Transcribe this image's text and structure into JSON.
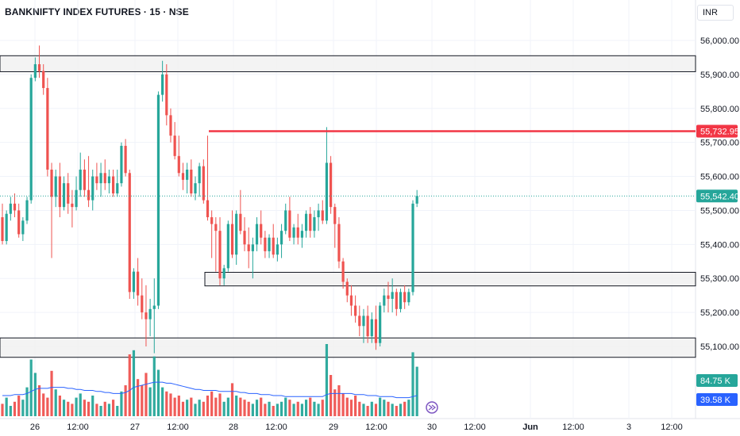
{
  "header": {
    "title": "BANKNIFTY INDEX FUTURES · 15 · NSE",
    "currency": "INR"
  },
  "colors": {
    "up": "#26a69a",
    "down": "#ef5350",
    "zone_fill": "#f0f0f0",
    "zone_border": "#131722",
    "resistance_line": "#f23645",
    "volume_ma": "#2962ff",
    "volume_tag": "#26a69a",
    "volume_ma_tag": "#2962ff",
    "grid": "#f0f3fa"
  },
  "chart_data": {
    "type": "candlestick",
    "y_axis": {
      "ticks": [
        "56,000.00",
        "55,900.00",
        "55,800.00",
        "55,700.00",
        "55,600.00",
        "55,500.00",
        "55,400.00",
        "55,300.00",
        "55,200.00",
        "55,100.00"
      ],
      "tick_values": [
        56000,
        55900,
        55800,
        55700,
        55600,
        55500,
        55400,
        55300,
        55200,
        55100
      ],
      "range": [
        55000,
        56060
      ]
    },
    "x_axis": {
      "ticks": [
        "26",
        "12:00",
        "27",
        "12:00",
        "28",
        "12:00",
        "29",
        "12:00",
        "30",
        "12:00",
        "Jun",
        "12:00",
        "3",
        "12:00"
      ],
      "bold": [
        false,
        false,
        false,
        false,
        false,
        false,
        false,
        false,
        false,
        false,
        true,
        false,
        false,
        false
      ]
    },
    "price_tags": [
      {
        "label": "55,732.95",
        "value": 55732.95,
        "color": "#f23645"
      },
      {
        "label": "55,542.40",
        "value": 55542.4,
        "color": "#26a69a"
      }
    ],
    "volume_tags": [
      {
        "label": "84.75 K",
        "color": "#26a69a"
      },
      {
        "label": "39.58 K",
        "color": "#2962ff"
      }
    ],
    "zones": [
      {
        "top": 55955,
        "bottom": 55908
      },
      {
        "top": 55318,
        "bottom": 55278
      },
      {
        "top": 55125,
        "bottom": 55068
      }
    ],
    "resistance": {
      "value": 55732.95
    },
    "last_price": 55542.4,
    "candles": [
      [
        55480,
        55520,
        55400,
        55410
      ],
      [
        55410,
        55500,
        55400,
        55490
      ],
      [
        55490,
        55540,
        55470,
        55520
      ],
      [
        55520,
        55550,
        55480,
        55500
      ],
      [
        55500,
        55520,
        55420,
        55430
      ],
      [
        55430,
        55480,
        55410,
        55470
      ],
      [
        55470,
        55540,
        55460,
        55530
      ],
      [
        55530,
        55900,
        55520,
        55890
      ],
      [
        55890,
        55950,
        55880,
        55930
      ],
      [
        55930,
        55985,
        55890,
        55910
      ],
      [
        55910,
        55930,
        55840,
        55860
      ],
      [
        55860,
        55890,
        55600,
        55620
      ],
      [
        55620,
        55640,
        55360,
        55540
      ],
      [
        55540,
        55620,
        55510,
        55600
      ],
      [
        55600,
        55640,
        55480,
        55510
      ],
      [
        55510,
        55600,
        55500,
        55580
      ],
      [
        55580,
        55610,
        55490,
        55520
      ],
      [
        55520,
        55560,
        55450,
        55510
      ],
      [
        55510,
        55600,
        55500,
        55560
      ],
      [
        55560,
        55670,
        55540,
        55620
      ],
      [
        55620,
        55650,
        55540,
        55560
      ],
      [
        55560,
        55660,
        55510,
        55530
      ],
      [
        55530,
        55620,
        55500,
        55600
      ],
      [
        55600,
        55640,
        55560,
        55580
      ],
      [
        55580,
        55640,
        55540,
        55610
      ],
      [
        55610,
        55650,
        55560,
        55580
      ],
      [
        55580,
        55620,
        55550,
        55600
      ],
      [
        55600,
        55620,
        55540,
        55550
      ],
      [
        55550,
        55620,
        55540,
        55580
      ],
      [
        55580,
        55700,
        55570,
        55690
      ],
      [
        55690,
        55710,
        55600,
        55610
      ],
      [
        55610,
        55620,
        55240,
        55260
      ],
      [
        55260,
        55330,
        55240,
        55320
      ],
      [
        55320,
        55360,
        55220,
        55250
      ],
      [
        55250,
        55300,
        55180,
        55200
      ],
      [
        55200,
        55280,
        55100,
        55180
      ],
      [
        55180,
        55240,
        55130,
        55210
      ],
      [
        55210,
        55300,
        55080,
        55220
      ],
      [
        55220,
        55850,
        55210,
        55840
      ],
      [
        55840,
        55940,
        55820,
        55900
      ],
      [
        55900,
        55930,
        55750,
        55780
      ],
      [
        55780,
        55800,
        55700,
        55720
      ],
      [
        55720,
        55760,
        55650,
        55660
      ],
      [
        55660,
        55720,
        55600,
        55610
      ],
      [
        55610,
        55640,
        55560,
        55590
      ],
      [
        55590,
        55640,
        55550,
        55620
      ],
      [
        55620,
        55650,
        55540,
        55550
      ],
      [
        55550,
        55600,
        55530,
        55580
      ],
      [
        55580,
        55640,
        55540,
        55630
      ],
      [
        55630,
        55650,
        55520,
        55530
      ],
      [
        55530,
        55720,
        55470,
        55480
      ],
      [
        55480,
        55500,
        55360,
        55460
      ],
      [
        55460,
        55480,
        55320,
        55440
      ],
      [
        55440,
        55480,
        55280,
        55300
      ],
      [
        55300,
        55340,
        55280,
        55330
      ],
      [
        55330,
        55470,
        55320,
        55460
      ],
      [
        55460,
        55500,
        55360,
        55370
      ],
      [
        55370,
        55500,
        55340,
        55490
      ],
      [
        55490,
        55560,
        55430,
        55440
      ],
      [
        55440,
        55480,
        55380,
        55400
      ],
      [
        55400,
        55450,
        55330,
        55380
      ],
      [
        55380,
        55420,
        55300,
        55400
      ],
      [
        55400,
        55480,
        55380,
        55460
      ],
      [
        55460,
        55500,
        55400,
        55420
      ],
      [
        55420,
        55440,
        55360,
        55380
      ],
      [
        55380,
        55430,
        55360,
        55420
      ],
      [
        55420,
        55460,
        55360,
        55370
      ],
      [
        55370,
        55420,
        55350,
        55400
      ],
      [
        55400,
        55460,
        55360,
        55440
      ],
      [
        55440,
        55520,
        55430,
        55500
      ],
      [
        55500,
        55540,
        55410,
        55420
      ],
      [
        55420,
        55460,
        55400,
        55450
      ],
      [
        55450,
        55490,
        55400,
        55420
      ],
      [
        55420,
        55460,
        55390,
        55440
      ],
      [
        55440,
        55500,
        55420,
        55490
      ],
      [
        55490,
        55510,
        55420,
        55440
      ],
      [
        55440,
        55500,
        55420,
        55480
      ],
      [
        55480,
        55520,
        55440,
        55500
      ],
      [
        55500,
        55530,
        55460,
        55470
      ],
      [
        55470,
        55745,
        55460,
        55640
      ],
      [
        55640,
        55660,
        55490,
        55510
      ],
      [
        55510,
        55520,
        55390,
        55460
      ],
      [
        55460,
        55480,
        55330,
        55350
      ],
      [
        55350,
        55360,
        55270,
        55290
      ],
      [
        55290,
        55300,
        55230,
        55250
      ],
      [
        55250,
        55280,
        55190,
        55220
      ],
      [
        55220,
        55250,
        55170,
        55190
      ],
      [
        55190,
        55220,
        55130,
        55160
      ],
      [
        55160,
        55210,
        55110,
        55190
      ],
      [
        55190,
        55220,
        55110,
        55130
      ],
      [
        55130,
        55200,
        55110,
        55180
      ],
      [
        55180,
        55220,
        55090,
        55110
      ],
      [
        55110,
        55230,
        55100,
        55220
      ],
      [
        55220,
        55270,
        55200,
        55250
      ],
      [
        55250,
        55290,
        55200,
        55240
      ],
      [
        55240,
        55300,
        55200,
        55260
      ],
      [
        55260,
        55270,
        55190,
        55210
      ],
      [
        55210,
        55270,
        55200,
        55260
      ],
      [
        55260,
        55280,
        55210,
        55230
      ],
      [
        55230,
        55270,
        55220,
        55260
      ],
      [
        55260,
        55530,
        55250,
        55520
      ],
      [
        55520,
        55560,
        55510,
        55542.4
      ]
    ],
    "volumes": [
      12,
      18,
      10,
      14,
      20,
      16,
      28,
      55,
      42,
      30,
      22,
      18,
      44,
      26,
      20,
      16,
      14,
      12,
      18,
      22,
      16,
      14,
      20,
      12,
      10,
      14,
      12,
      16,
      10,
      24,
      30,
      60,
      64,
      36,
      30,
      42,
      28,
      58,
      45,
      28,
      24,
      22,
      18,
      20,
      14,
      16,
      18,
      12,
      16,
      14,
      20,
      24,
      18,
      22,
      14,
      18,
      32,
      20,
      18,
      16,
      14,
      12,
      16,
      18,
      12,
      14,
      10,
      12,
      14,
      18,
      16,
      12,
      14,
      12,
      16,
      18,
      14,
      12,
      16,
      70,
      40,
      26,
      30,
      22,
      18,
      16,
      20,
      14,
      12,
      10,
      14,
      12,
      18,
      16,
      14,
      12,
      10,
      12,
      14,
      16,
      62,
      48
    ],
    "volume_ma": [
      20,
      20,
      20,
      21,
      21,
      21,
      22,
      24,
      26,
      27,
      27,
      27,
      28,
      28,
      28,
      28,
      27,
      27,
      26,
      26,
      25,
      25,
      25,
      24,
      24,
      23,
      23,
      22,
      22,
      22,
      23,
      25,
      28,
      29,
      30,
      31,
      32,
      33,
      33,
      33,
      32,
      32,
      31,
      30,
      29,
      28,
      27,
      26,
      26,
      25,
      25,
      25,
      25,
      24,
      24,
      24,
      24,
      24,
      23,
      23,
      22,
      22,
      22,
      21,
      21,
      21,
      20,
      20,
      20,
      19,
      19,
      19,
      19,
      19,
      19,
      19,
      19,
      19,
      19,
      21,
      22,
      22,
      22,
      22,
      22,
      22,
      21,
      21,
      21,
      20,
      20,
      20,
      19,
      19,
      19,
      19,
      18,
      18,
      18,
      18,
      19,
      20
    ]
  }
}
